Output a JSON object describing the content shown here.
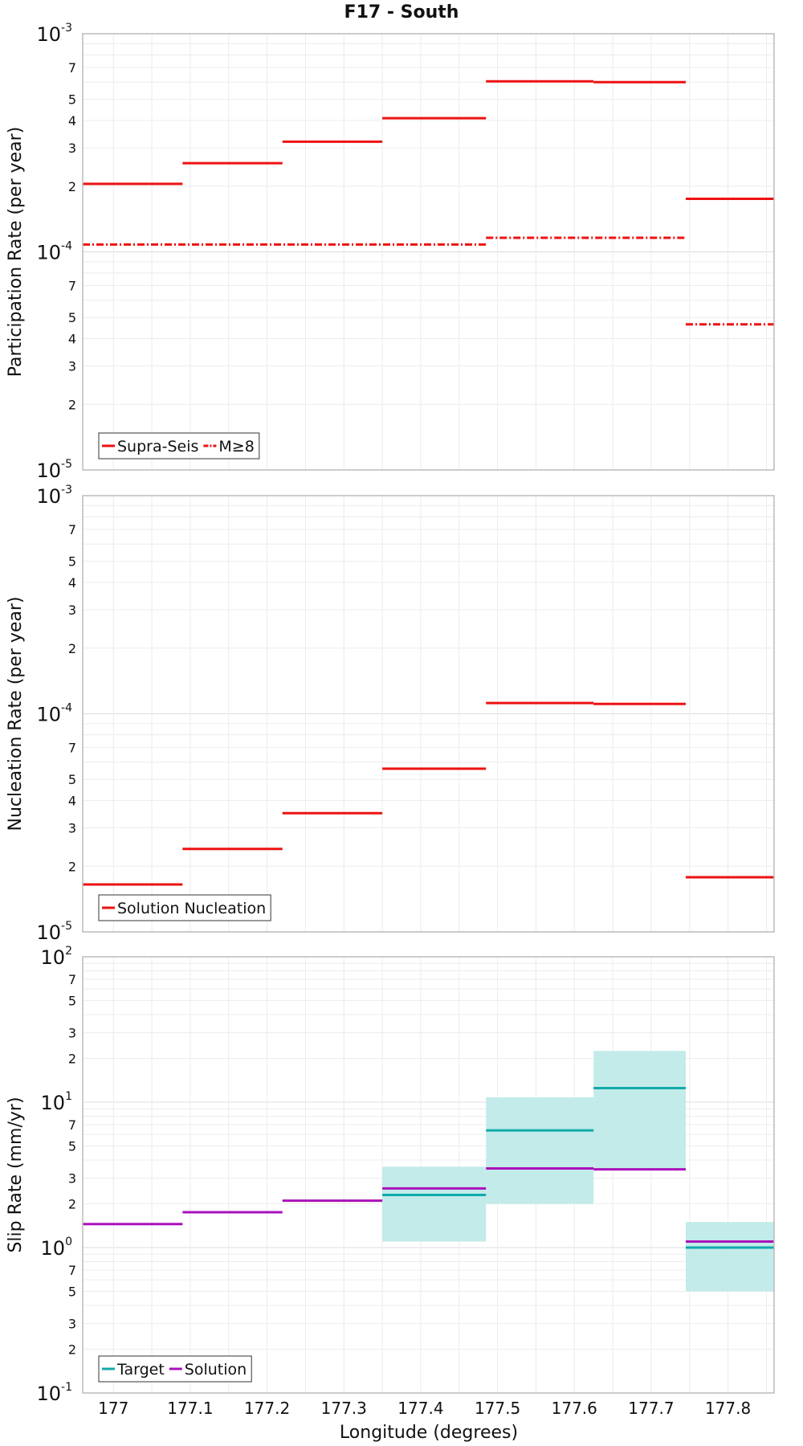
{
  "title": "F17 - South",
  "xlabel": "Longitude (degrees)",
  "x_ticks": [
    "177",
    "177.1",
    "177.2",
    "177.3",
    "177.4",
    "177.5",
    "177.6",
    "177.7",
    "177.8"
  ],
  "colors": {
    "red": "#ee1111",
    "teal": "#11aaaa",
    "purple": "#aa11bb",
    "band": "#bfeae8"
  },
  "chart_data": [
    {
      "type": "line",
      "ylabel": "Participation Rate (per year)",
      "yscale": "log",
      "ylim": [
        1e-05,
        0.001
      ],
      "xlim": [
        176.96,
        177.86
      ],
      "y_major_ticks": [
        {
          "base": "10",
          "exp": "-5"
        },
        {
          "base": "10",
          "exp": "-4"
        },
        {
          "base": "10",
          "exp": "-3"
        }
      ],
      "y_minor_labels": [
        "2",
        "3",
        "4",
        "5",
        "7",
        "2",
        "3",
        "4",
        "5",
        "7"
      ],
      "legend": {
        "position": "bottom-left",
        "entries": [
          "Supra-Seis",
          "M≥8"
        ]
      },
      "series": [
        {
          "name": "Supra-Seis",
          "style": "solid",
          "segments": [
            {
              "x0": 176.96,
              "x1": 177.09,
              "y": 0.000205
            },
            {
              "x0": 177.09,
              "x1": 177.22,
              "y": 0.000255
            },
            {
              "x0": 177.22,
              "x1": 177.35,
              "y": 0.00032
            },
            {
              "x0": 177.35,
              "x1": 177.485,
              "y": 0.00041
            },
            {
              "x0": 177.485,
              "x1": 177.625,
              "y": 0.000605
            },
            {
              "x0": 177.625,
              "x1": 177.745,
              "y": 0.0006
            },
            {
              "x0": 177.745,
              "x1": 177.86,
              "y": 0.000175
            }
          ]
        },
        {
          "name": "M≥8",
          "style": "dashdot",
          "segments": [
            {
              "x0": 176.96,
              "x1": 177.485,
              "y": 0.000108
            },
            {
              "x0": 177.485,
              "x1": 177.745,
              "y": 0.000116
            },
            {
              "x0": 177.745,
              "x1": 177.86,
              "y": 4.65e-05
            }
          ]
        }
      ]
    },
    {
      "type": "line",
      "ylabel": "Nucleation Rate (per year)",
      "yscale": "log",
      "ylim": [
        1e-05,
        0.001
      ],
      "xlim": [
        176.96,
        177.86
      ],
      "y_major_ticks": [
        {
          "base": "10",
          "exp": "-5"
        },
        {
          "base": "10",
          "exp": "-4"
        },
        {
          "base": "10",
          "exp": "-3"
        }
      ],
      "y_minor_labels": [
        "2",
        "3",
        "4",
        "5",
        "7",
        "2",
        "3",
        "4",
        "5",
        "7"
      ],
      "legend": {
        "position": "bottom-left",
        "entries": [
          "Solution Nucleation"
        ]
      },
      "series": [
        {
          "name": "Solution Nucleation",
          "style": "solid",
          "segments": [
            {
              "x0": 176.96,
              "x1": 177.09,
              "y": 1.65e-05
            },
            {
              "x0": 177.09,
              "x1": 177.22,
              "y": 2.4e-05
            },
            {
              "x0": 177.22,
              "x1": 177.35,
              "y": 3.5e-05
            },
            {
              "x0": 177.35,
              "x1": 177.485,
              "y": 5.6e-05
            },
            {
              "x0": 177.485,
              "x1": 177.625,
              "y": 0.000112
            },
            {
              "x0": 177.625,
              "x1": 177.745,
              "y": 0.000111
            },
            {
              "x0": 177.745,
              "x1": 177.86,
              "y": 1.78e-05
            }
          ]
        }
      ]
    },
    {
      "type": "line",
      "ylabel": "Slip Rate (mm/yr)",
      "yscale": "log",
      "ylim": [
        0.1,
        100
      ],
      "xlim": [
        176.96,
        177.86
      ],
      "y_major_ticks": [
        {
          "base": "10",
          "exp": "-1"
        },
        {
          "base": "10",
          "exp": "0"
        },
        {
          "base": "10",
          "exp": "1"
        },
        {
          "base": "10",
          "exp": "2"
        }
      ],
      "y_minor_labels": [
        "2",
        "3",
        "5",
        "7",
        "2",
        "3",
        "5",
        "7",
        "2",
        "3",
        "5",
        "7"
      ],
      "legend": {
        "position": "bottom-left",
        "entries": [
          "Target",
          "Solution"
        ]
      },
      "bands": [
        {
          "x0": 177.35,
          "x1": 177.485,
          "y0": 1.1,
          "y1": 3.6
        },
        {
          "x0": 177.485,
          "x1": 177.625,
          "y0": 2.0,
          "y1": 10.8
        },
        {
          "x0": 177.625,
          "x1": 177.745,
          "y0": 3.5,
          "y1": 22.5
        },
        {
          "x0": 177.745,
          "x1": 177.86,
          "y0": 0.5,
          "y1": 1.5
        }
      ],
      "series": [
        {
          "name": "Target",
          "style": "solid",
          "segments": [
            {
              "x0": 177.35,
              "x1": 177.485,
              "y": 2.3
            },
            {
              "x0": 177.485,
              "x1": 177.625,
              "y": 6.4
            },
            {
              "x0": 177.625,
              "x1": 177.745,
              "y": 12.5
            },
            {
              "x0": 177.745,
              "x1": 177.86,
              "y": 1.0
            }
          ]
        },
        {
          "name": "Solution",
          "style": "solid",
          "segments": [
            {
              "x0": 176.96,
              "x1": 177.09,
              "y": 1.45
            },
            {
              "x0": 177.09,
              "x1": 177.22,
              "y": 1.75
            },
            {
              "x0": 177.22,
              "x1": 177.35,
              "y": 2.1
            },
            {
              "x0": 177.35,
              "x1": 177.485,
              "y": 2.55
            },
            {
              "x0": 177.485,
              "x1": 177.625,
              "y": 3.5
            },
            {
              "x0": 177.625,
              "x1": 177.745,
              "y": 3.45
            },
            {
              "x0": 177.745,
              "x1": 177.86,
              "y": 1.1
            }
          ]
        }
      ]
    }
  ]
}
